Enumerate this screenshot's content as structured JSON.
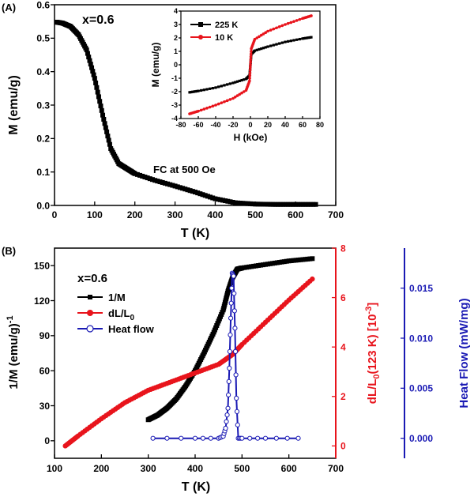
{
  "chart_data": [
    {
      "id": "A",
      "panel_label": "(A)",
      "type": "line",
      "annotation_sample": "x=0.6",
      "annotation_condition": "FC at 500 Oe",
      "xlabel": "T (K)",
      "ylabel": "M (emu/g)",
      "xlim": [
        0,
        700
      ],
      "ylim": [
        0,
        0.6
      ],
      "xticks": [
        "0",
        "100",
        "200",
        "300",
        "400",
        "500",
        "600",
        "700"
      ],
      "yticks": [
        "0.0",
        "0.1",
        "0.2",
        "0.3",
        "0.4",
        "0.5",
        "0.6"
      ],
      "series": [
        {
          "name": "M (FC)",
          "color": "#000000",
          "x": [
            5,
            20,
            40,
            60,
            80,
            100,
            120,
            140,
            160,
            180,
            200,
            250,
            300,
            350,
            400,
            450,
            500,
            550,
            600,
            650
          ],
          "y": [
            0.548,
            0.545,
            0.535,
            0.51,
            0.465,
            0.38,
            0.27,
            0.17,
            0.125,
            0.11,
            0.095,
            0.075,
            0.058,
            0.04,
            0.02,
            0.008,
            0.004,
            0.003,
            0.003,
            0.003
          ]
        }
      ],
      "inset": {
        "xlabel": "H (kOe)",
        "ylabel": "M (emu/g)",
        "xlim": [
          -80,
          80
        ],
        "ylim": [
          -4,
          4
        ],
        "xticks": [
          "-80",
          "-60",
          "-40",
          "-20",
          "0",
          "20",
          "40",
          "60",
          "80"
        ],
        "yticks": [
          "-4",
          "-3",
          "-2",
          "-1",
          "0",
          "1",
          "2",
          "3",
          "4"
        ],
        "series": [
          {
            "name": "225 K",
            "color": "#000000",
            "x": [
              -70,
              -60,
              -40,
              -20,
              -5,
              -1,
              0,
              1,
              5,
              20,
              40,
              60,
              70
            ],
            "y": [
              -2.05,
              -1.95,
              -1.7,
              -1.35,
              -1.05,
              -0.8,
              0,
              0.8,
              1.05,
              1.35,
              1.7,
              1.95,
              2.05
            ]
          },
          {
            "name": "10 K",
            "color": "#e8141c",
            "x": [
              -70,
              -60,
              -40,
              -20,
              -5,
              -1,
              0,
              1,
              5,
              20,
              40,
              60,
              70
            ],
            "y": [
              -3.65,
              -3.45,
              -3.0,
              -2.5,
              -1.9,
              -1.2,
              0,
              1.2,
              1.9,
              2.5,
              3.0,
              3.45,
              3.65
            ]
          }
        ]
      }
    },
    {
      "id": "B",
      "panel_label": "(B)",
      "type": "line",
      "annotation_sample": "x=0.6",
      "xlabel": "T (K)",
      "xlim": [
        100,
        700
      ],
      "xticks": [
        "100",
        "200",
        "300",
        "400",
        "500",
        "600",
        "700"
      ],
      "ylabel_left": "1/M (emu/g)",
      "ylabel_left_sup": "-1",
      "ylim_left": [
        -15,
        165
      ],
      "yticks_left": [
        "0",
        "30",
        "60",
        "90",
        "120",
        "150"
      ],
      "ylabel_right1_a": "dL/L",
      "ylabel_right1_sub": "0",
      "ylabel_right1_b": "(123 K) [10",
      "ylabel_right1_sup": "-3",
      "ylabel_right1_c": "]",
      "ylim_right1": [
        -0.5,
        8
      ],
      "yticks_right1": [
        "0",
        "2",
        "4",
        "6",
        "8"
      ],
      "ylabel_right2": "Heat Flow (mW/mg)",
      "ylim_right2": [
        -0.002,
        0.019
      ],
      "yticks_right2": [
        "0.000",
        "0.005",
        "0.010",
        "0.015"
      ],
      "legend": [
        {
          "label_a": "1/M",
          "label_sub": "",
          "color": "#000000",
          "marker": "square"
        },
        {
          "label_a": "dL/L",
          "label_sub": "0",
          "color": "#e8141c",
          "marker": "circle"
        },
        {
          "label_a": "Heat flow",
          "label_sub": "",
          "color": "#1a1ab4",
          "marker": "open-circle"
        }
      ],
      "series": [
        {
          "name": "1/M",
          "axis": "left",
          "color": "#000000",
          "x": [
            300,
            320,
            340,
            360,
            380,
            400,
            420,
            440,
            460,
            470,
            480,
            490,
            500,
            550,
            600,
            650
          ],
          "y": [
            18,
            22,
            28,
            36,
            47,
            60,
            76,
            93,
            112,
            128,
            140,
            147,
            148,
            151,
            154,
            156
          ]
        },
        {
          "name": "dL/L0",
          "axis": "right1",
          "color": "#e8141c",
          "x": [
            123,
            150,
            200,
            250,
            300,
            350,
            400,
            450,
            480,
            500,
            550,
            600,
            650
          ],
          "y": [
            0,
            0.4,
            1.1,
            1.75,
            2.25,
            2.6,
            2.95,
            3.3,
            3.7,
            4.1,
            5.0,
            5.9,
            6.75
          ]
        },
        {
          "name": "Heat flow",
          "axis": "right2",
          "color": "#1a1ab4",
          "x": [
            310,
            400,
            450,
            460,
            465,
            470,
            473,
            476,
            479,
            482,
            485,
            488,
            492,
            500,
            550,
            620
          ],
          "y": [
            0,
            0,
            0,
            0.0002,
            0.001,
            0.003,
            0.007,
            0.012,
            0.0165,
            0.0162,
            0.011,
            0.004,
            0,
            0,
            0,
            0
          ]
        }
      ]
    }
  ],
  "colors": {
    "black": "#000000",
    "red": "#e8141c",
    "blue": "#1a1ab4"
  }
}
